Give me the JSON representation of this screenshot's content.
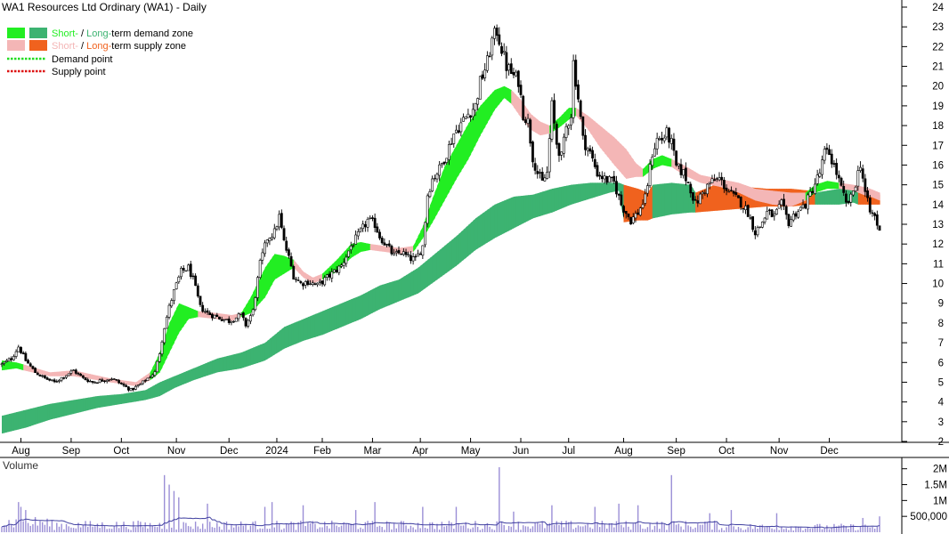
{
  "chart_data": {
    "type": "candlestick",
    "title": "WA1 Resources Ltd Ordinary (WA1) - Daily",
    "legend": {
      "demand_zone": {
        "short_word": "Short-",
        "sep": " / ",
        "long_word": "Long-",
        "rest": "term demand zone"
      },
      "supply_zone": {
        "short_word": "Short-",
        "sep": " / ",
        "long_word": "Long-",
        "rest": "term supply zone"
      },
      "demand_point": "Demand point",
      "supply_point": "Supply point"
    },
    "colors": {
      "short_demand": "#22ee22",
      "long_demand": "#3cb371",
      "short_supply": "#f4b6b6",
      "long_supply": "#f0621e",
      "demand_point": "#22dd22",
      "supply_point": "#dd1111",
      "volume_bar": "#9b8fd6",
      "volume_line": "#4040a0",
      "volume_title": "#7030a0"
    },
    "y_axis": {
      "min": 2,
      "max": 24,
      "ticks": [
        2,
        3,
        4,
        5,
        6,
        7,
        8,
        9,
        10,
        11,
        12,
        13,
        14,
        15,
        16,
        17,
        18,
        19,
        20,
        21,
        22,
        23,
        24
      ]
    },
    "x_months": [
      {
        "label": "Aug",
        "idx": 8
      },
      {
        "label": "Sep",
        "idx": 29
      },
      {
        "label": "Oct",
        "idx": 50
      },
      {
        "label": "Nov",
        "idx": 73
      },
      {
        "label": "Dec",
        "idx": 95
      },
      {
        "label": "2024",
        "idx": 115
      },
      {
        "label": "Feb",
        "idx": 134
      },
      {
        "label": "Mar",
        "idx": 155
      },
      {
        "label": "Apr",
        "idx": 175
      },
      {
        "label": "May",
        "idx": 196
      },
      {
        "label": "Jun",
        "idx": 217
      },
      {
        "label": "Jul",
        "idx": 237
      },
      {
        "label": "Aug",
        "idx": 260
      },
      {
        "label": "Sep",
        "idx": 282
      },
      {
        "label": "Oct",
        "idx": 303
      },
      {
        "label": "Nov",
        "idx": 325
      },
      {
        "label": "Dec",
        "idx": 346
      }
    ],
    "price_keypoints": [
      [
        0,
        5.9
      ],
      [
        4,
        6.2
      ],
      [
        7,
        6.8
      ],
      [
        10,
        6.1
      ],
      [
        14,
        5.5
      ],
      [
        18,
        5.2
      ],
      [
        22,
        5.0
      ],
      [
        26,
        5.3
      ],
      [
        30,
        5.6
      ],
      [
        34,
        5.2
      ],
      [
        38,
        5.0
      ],
      [
        42,
        5.1
      ],
      [
        46,
        5.2
      ],
      [
        50,
        4.9
      ],
      [
        54,
        4.6
      ],
      [
        58,
        4.9
      ],
      [
        62,
        5.3
      ],
      [
        64,
        5.5
      ],
      [
        66,
        6.5
      ],
      [
        68,
        7.8
      ],
      [
        70,
        8.8
      ],
      [
        72,
        9.6
      ],
      [
        75,
        10.6
      ],
      [
        78,
        10.8
      ],
      [
        80,
        10.2
      ],
      [
        83,
        8.8
      ],
      [
        86,
        8.5
      ],
      [
        90,
        8.3
      ],
      [
        95,
        8.1
      ],
      [
        100,
        8.4
      ],
      [
        102,
        7.9
      ],
      [
        105,
        8.6
      ],
      [
        108,
        11.0
      ],
      [
        111,
        12.3
      ],
      [
        114,
        12.6
      ],
      [
        116,
        13.4
      ],
      [
        118,
        12.1
      ],
      [
        120,
        11.3
      ],
      [
        122,
        10.4
      ],
      [
        125,
        10.0
      ],
      [
        128,
        10.1
      ],
      [
        132,
        9.9
      ],
      [
        135,
        10.2
      ],
      [
        138,
        10.5
      ],
      [
        142,
        10.9
      ],
      [
        146,
        11.9
      ],
      [
        150,
        12.6
      ],
      [
        153,
        13.2
      ],
      [
        156,
        13.0
      ],
      [
        158,
        12.4
      ],
      [
        161,
        11.9
      ],
      [
        164,
        11.4
      ],
      [
        167,
        11.6
      ],
      [
        170,
        11.3
      ],
      [
        173,
        11.2
      ],
      [
        176,
        11.9
      ],
      [
        178,
        14.5
      ],
      [
        180,
        15.3
      ],
      [
        183,
        15.8
      ],
      [
        186,
        16.6
      ],
      [
        189,
        17.6
      ],
      [
        192,
        18.1
      ],
      [
        195,
        18.6
      ],
      [
        198,
        19.0
      ],
      [
        200,
        20.2
      ],
      [
        203,
        21.2
      ],
      [
        205,
        22.3
      ],
      [
        207,
        22.8
      ],
      [
        209,
        21.9
      ],
      [
        211,
        21.0
      ],
      [
        214,
        20.5
      ],
      [
        216,
        20.3
      ],
      [
        218,
        18.6
      ],
      [
        220,
        18.2
      ],
      [
        222,
        16.4
      ],
      [
        224,
        15.6
      ],
      [
        226,
        15.1
      ],
      [
        228,
        15.6
      ],
      [
        230,
        19.0
      ],
      [
        232,
        17.1
      ],
      [
        234,
        16.4
      ],
      [
        236,
        17.9
      ],
      [
        238,
        18.6
      ],
      [
        239,
        21.2
      ],
      [
        241,
        19.4
      ],
      [
        243,
        17.3
      ],
      [
        246,
        16.6
      ],
      [
        249,
        15.6
      ],
      [
        252,
        15.3
      ],
      [
        256,
        15.1
      ],
      [
        259,
        14.0
      ],
      [
        261,
        13.6
      ],
      [
        263,
        13.2
      ],
      [
        266,
        13.6
      ],
      [
        269,
        14.3
      ],
      [
        272,
        16.6
      ],
      [
        274,
        17.3
      ],
      [
        276,
        17.3
      ],
      [
        278,
        17.6
      ],
      [
        280,
        17.1
      ],
      [
        282,
        15.9
      ],
      [
        285,
        15.6
      ],
      [
        288,
        14.8
      ],
      [
        290,
        14.0
      ],
      [
        293,
        14.6
      ],
      [
        296,
        15.1
      ],
      [
        300,
        15.3
      ],
      [
        303,
        14.8
      ],
      [
        306,
        14.4
      ],
      [
        309,
        14.1
      ],
      [
        312,
        13.6
      ],
      [
        315,
        12.6
      ],
      [
        317,
        12.9
      ],
      [
        320,
        13.6
      ],
      [
        323,
        13.4
      ],
      [
        326,
        14.0
      ],
      [
        329,
        13.1
      ],
      [
        332,
        13.6
      ],
      [
        336,
        14.0
      ],
      [
        339,
        14.8
      ],
      [
        342,
        15.6
      ],
      [
        344,
        16.6
      ],
      [
        346,
        16.6
      ],
      [
        349,
        15.6
      ],
      [
        351,
        14.8
      ],
      [
        353,
        14.0
      ],
      [
        355,
        14.3
      ],
      [
        357,
        15.1
      ],
      [
        359,
        16.1
      ],
      [
        361,
        14.6
      ],
      [
        363,
        13.6
      ],
      [
        365,
        13.4
      ],
      [
        367,
        12.6
      ]
    ],
    "short_zone_keypoints": [
      [
        0,
        5.6,
        6.1,
        "d"
      ],
      [
        6,
        5.7,
        6.0,
        "d"
      ],
      [
        9,
        5.6,
        5.9,
        "s"
      ],
      [
        20,
        5.3,
        5.5,
        "s"
      ],
      [
        30,
        5.3,
        5.6,
        "s"
      ],
      [
        45,
        5.0,
        5.2,
        "s"
      ],
      [
        56,
        4.8,
        5.0,
        "s"
      ],
      [
        62,
        5.1,
        5.5,
        "d"
      ],
      [
        66,
        5.5,
        6.5,
        "d"
      ],
      [
        70,
        6.5,
        8.0,
        "d"
      ],
      [
        74,
        7.5,
        9.0,
        "d"
      ],
      [
        78,
        8.2,
        8.8,
        "d"
      ],
      [
        82,
        8.3,
        8.6,
        "s"
      ],
      [
        90,
        8.2,
        8.5,
        "s"
      ],
      [
        96,
        8.1,
        8.4,
        "s"
      ],
      [
        100,
        8.3,
        8.5,
        "d"
      ],
      [
        104,
        8.5,
        9.3,
        "d"
      ],
      [
        110,
        9.3,
        10.8,
        "d"
      ],
      [
        114,
        10.2,
        11.5,
        "d"
      ],
      [
        118,
        10.5,
        11.4,
        "d"
      ],
      [
        122,
        10.8,
        11.2,
        "s"
      ],
      [
        126,
        10.3,
        10.6,
        "s"
      ],
      [
        130,
        10.0,
        10.3,
        "s"
      ],
      [
        134,
        10.2,
        10.5,
        "d"
      ],
      [
        140,
        10.6,
        11.2,
        "d"
      ],
      [
        146,
        11.3,
        12.0,
        "d"
      ],
      [
        150,
        11.6,
        12.1,
        "d"
      ],
      [
        154,
        11.7,
        12.0,
        "s"
      ],
      [
        160,
        11.6,
        11.9,
        "s"
      ],
      [
        166,
        11.5,
        11.8,
        "s"
      ],
      [
        172,
        11.6,
        11.9,
        "d"
      ],
      [
        176,
        12.3,
        12.9,
        "d"
      ],
      [
        180,
        13.1,
        14.3,
        "d"
      ],
      [
        185,
        14.2,
        15.9,
        "d"
      ],
      [
        190,
        15.3,
        17.0,
        "d"
      ],
      [
        195,
        16.3,
        18.1,
        "d"
      ],
      [
        200,
        17.5,
        19.0,
        "d"
      ],
      [
        206,
        18.8,
        19.8,
        "d"
      ],
      [
        210,
        19.4,
        20.0,
        "d"
      ],
      [
        213,
        19.1,
        19.8,
        "s"
      ],
      [
        217,
        18.4,
        19.3,
        "s"
      ],
      [
        221,
        17.8,
        18.6,
        "s"
      ],
      [
        225,
        17.5,
        18.2,
        "s"
      ],
      [
        229,
        17.6,
        18.0,
        "d"
      ],
      [
        233,
        17.9,
        18.4,
        "d"
      ],
      [
        237,
        18.3,
        18.9,
        "d"
      ],
      [
        240,
        18.5,
        18.9,
        "s"
      ],
      [
        245,
        17.8,
        18.5,
        "s"
      ],
      [
        250,
        16.9,
        18.0,
        "s"
      ],
      [
        256,
        16.0,
        17.4,
        "s"
      ],
      [
        261,
        15.3,
        16.8,
        "s"
      ],
      [
        265,
        15.4,
        16.1,
        "s"
      ],
      [
        268,
        15.4,
        15.8,
        "d"
      ],
      [
        272,
        15.8,
        16.3,
        "d"
      ],
      [
        276,
        16.0,
        16.5,
        "d"
      ],
      [
        280,
        15.9,
        16.3,
        "s"
      ],
      [
        285,
        15.5,
        16.0,
        "s"
      ],
      [
        292,
        15.1,
        15.5,
        "s"
      ],
      [
        300,
        14.9,
        15.3,
        "s"
      ],
      [
        308,
        14.6,
        15.1,
        "s"
      ],
      [
        315,
        14.2,
        14.8,
        "s"
      ],
      [
        322,
        14.0,
        14.7,
        "s"
      ],
      [
        330,
        13.9,
        14.6,
        "s"
      ],
      [
        336,
        14.2,
        14.6,
        "d"
      ],
      [
        340,
        14.6,
        15.0,
        "d"
      ],
      [
        345,
        14.8,
        15.2,
        "d"
      ],
      [
        350,
        14.8,
        15.1,
        "s"
      ],
      [
        356,
        14.7,
        15.0,
        "s"
      ],
      [
        360,
        14.5,
        14.9,
        "s"
      ],
      [
        363,
        14.4,
        14.8,
        "s"
      ],
      [
        367,
        14.2,
        14.6,
        "s"
      ]
    ],
    "long_zone_keypoints": [
      [
        0,
        2.4,
        3.3,
        "d"
      ],
      [
        10,
        2.7,
        3.6,
        "d"
      ],
      [
        20,
        3.1,
        3.9,
        "d"
      ],
      [
        30,
        3.4,
        4.1,
        "d"
      ],
      [
        40,
        3.7,
        4.3,
        "d"
      ],
      [
        50,
        3.9,
        4.4,
        "d"
      ],
      [
        60,
        4.1,
        4.6,
        "d"
      ],
      [
        66,
        4.3,
        5.0,
        "d"
      ],
      [
        72,
        4.7,
        5.3,
        "d"
      ],
      [
        80,
        5.1,
        5.7,
        "d"
      ],
      [
        90,
        5.5,
        6.2,
        "d"
      ],
      [
        100,
        5.7,
        6.5,
        "d"
      ],
      [
        110,
        6.1,
        7.0,
        "d"
      ],
      [
        118,
        6.7,
        7.8,
        "d"
      ],
      [
        126,
        7.1,
        8.2,
        "d"
      ],
      [
        134,
        7.4,
        8.6,
        "d"
      ],
      [
        142,
        7.8,
        9.0,
        "d"
      ],
      [
        150,
        8.2,
        9.4,
        "d"
      ],
      [
        158,
        8.7,
        9.9,
        "d"
      ],
      [
        166,
        9.1,
        10.2,
        "d"
      ],
      [
        174,
        9.5,
        10.8,
        "d"
      ],
      [
        182,
        10.2,
        11.6,
        "d"
      ],
      [
        190,
        10.9,
        12.4,
        "d"
      ],
      [
        198,
        11.7,
        13.3,
        "d"
      ],
      [
        206,
        12.3,
        14.0,
        "d"
      ],
      [
        214,
        12.8,
        14.4,
        "d"
      ],
      [
        222,
        13.3,
        14.5,
        "d"
      ],
      [
        230,
        13.6,
        14.8,
        "d"
      ],
      [
        238,
        14.0,
        15.0,
        "d"
      ],
      [
        246,
        14.3,
        15.1,
        "d"
      ],
      [
        254,
        14.6,
        15.1,
        "d"
      ],
      [
        258,
        14.7,
        15.1,
        "d"
      ],
      [
        260,
        13.1,
        15.0,
        "s"
      ],
      [
        266,
        13.2,
        14.8,
        "s"
      ],
      [
        270,
        13.2,
        14.6,
        "s"
      ],
      [
        272,
        13.3,
        15.0,
        "d"
      ],
      [
        280,
        13.5,
        15.1,
        "d"
      ],
      [
        288,
        13.6,
        15.0,
        "d"
      ],
      [
        290,
        13.6,
        14.6,
        "s"
      ],
      [
        300,
        13.7,
        15.1,
        "s"
      ],
      [
        310,
        13.8,
        14.9,
        "s"
      ],
      [
        320,
        13.9,
        14.8,
        "s"
      ],
      [
        330,
        13.9,
        14.8,
        "s"
      ],
      [
        338,
        14.0,
        14.7,
        "s"
      ],
      [
        340,
        14.0,
        14.6,
        "d"
      ],
      [
        350,
        14.0,
        14.8,
        "d"
      ],
      [
        356,
        14.1,
        14.9,
        "d"
      ],
      [
        358,
        14.0,
        14.7,
        "s"
      ],
      [
        367,
        14.0,
        14.5,
        "s"
      ]
    ],
    "volume": {
      "ticks": [
        {
          "label": "500,000",
          "value": 500000
        },
        {
          "label": "1M",
          "value": 1000000
        },
        {
          "label": "1.5M",
          "value": 1500000
        },
        {
          "label": "2M",
          "value": 2000000
        }
      ],
      "max": 2300000,
      "spikes": [
        [
          7,
          0.95
        ],
        [
          8,
          0.8
        ],
        [
          10,
          0.7
        ],
        [
          68,
          1.8
        ],
        [
          70,
          1.5
        ],
        [
          72,
          1.3
        ],
        [
          74,
          1.1
        ],
        [
          86,
          0.9
        ],
        [
          110,
          0.8
        ],
        [
          113,
          0.95
        ],
        [
          126,
          0.85
        ],
        [
          148,
          0.7
        ],
        [
          156,
          0.95
        ],
        [
          176,
          0.8
        ],
        [
          190,
          0.8
        ],
        [
          208,
          2.05
        ],
        [
          214,
          0.65
        ],
        [
          230,
          0.85
        ],
        [
          248,
          0.8
        ],
        [
          258,
          0.9
        ],
        [
          266,
          0.85
        ],
        [
          280,
          1.8
        ],
        [
          296,
          0.6
        ],
        [
          305,
          0.7
        ],
        [
          324,
          0.6
        ],
        [
          360,
          0.45
        ],
        [
          367,
          0.5
        ]
      ]
    },
    "volume_label": "Volume"
  }
}
